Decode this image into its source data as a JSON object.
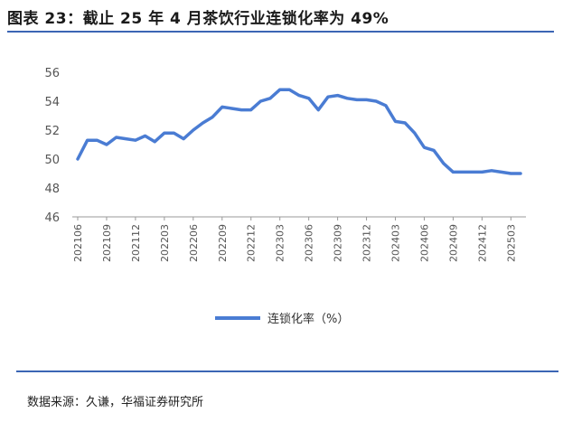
{
  "header": {
    "title": "图表 23：截止 25 年 4 月茶饮行业连锁化率为 49%"
  },
  "footer": {
    "source": "数据来源：久谦，华福证券研究所"
  },
  "colors": {
    "line": "#4a7cd3",
    "rule": "#3b65b4",
    "axis": "#999999"
  },
  "chart_data": {
    "type": "line",
    "title": "",
    "xlabel": "",
    "ylabel": "",
    "ylim": [
      46,
      56
    ],
    "yticks": [
      46,
      48,
      50,
      52,
      54,
      56
    ],
    "grid": false,
    "legend_position": "bottom",
    "x": [
      "202106",
      "202107",
      "202108",
      "202109",
      "202110",
      "202111",
      "202112",
      "202201",
      "202202",
      "202203",
      "202204",
      "202205",
      "202206",
      "202207",
      "202208",
      "202209",
      "202210",
      "202211",
      "202212",
      "202301",
      "202302",
      "202303",
      "202304",
      "202305",
      "202306",
      "202307",
      "202308",
      "202309",
      "202310",
      "202311",
      "202312",
      "202401",
      "202402",
      "202403",
      "202404",
      "202405",
      "202406",
      "202407",
      "202408",
      "202409",
      "202410",
      "202411",
      "202412",
      "202501",
      "202502",
      "202503",
      "202504"
    ],
    "xtick_labels": [
      "202106",
      "202109",
      "202112",
      "202203",
      "202206",
      "202209",
      "202212",
      "202303",
      "202306",
      "202309",
      "202312",
      "202403",
      "202406",
      "202409",
      "202412",
      "202503"
    ],
    "series": [
      {
        "name": "连锁化率（%）",
        "values": [
          50.0,
          51.3,
          51.3,
          51.0,
          51.5,
          51.4,
          51.3,
          51.6,
          51.2,
          51.8,
          51.8,
          51.4,
          52.0,
          52.5,
          52.9,
          53.6,
          53.5,
          53.4,
          53.4,
          54.0,
          54.2,
          54.8,
          54.8,
          54.4,
          54.2,
          53.4,
          54.3,
          54.4,
          54.2,
          54.1,
          54.1,
          54.0,
          53.7,
          52.6,
          52.5,
          51.8,
          50.8,
          50.6,
          49.7,
          49.1,
          49.1,
          49.1,
          49.1,
          49.2,
          49.1,
          49.0,
          49.0
        ]
      }
    ]
  }
}
